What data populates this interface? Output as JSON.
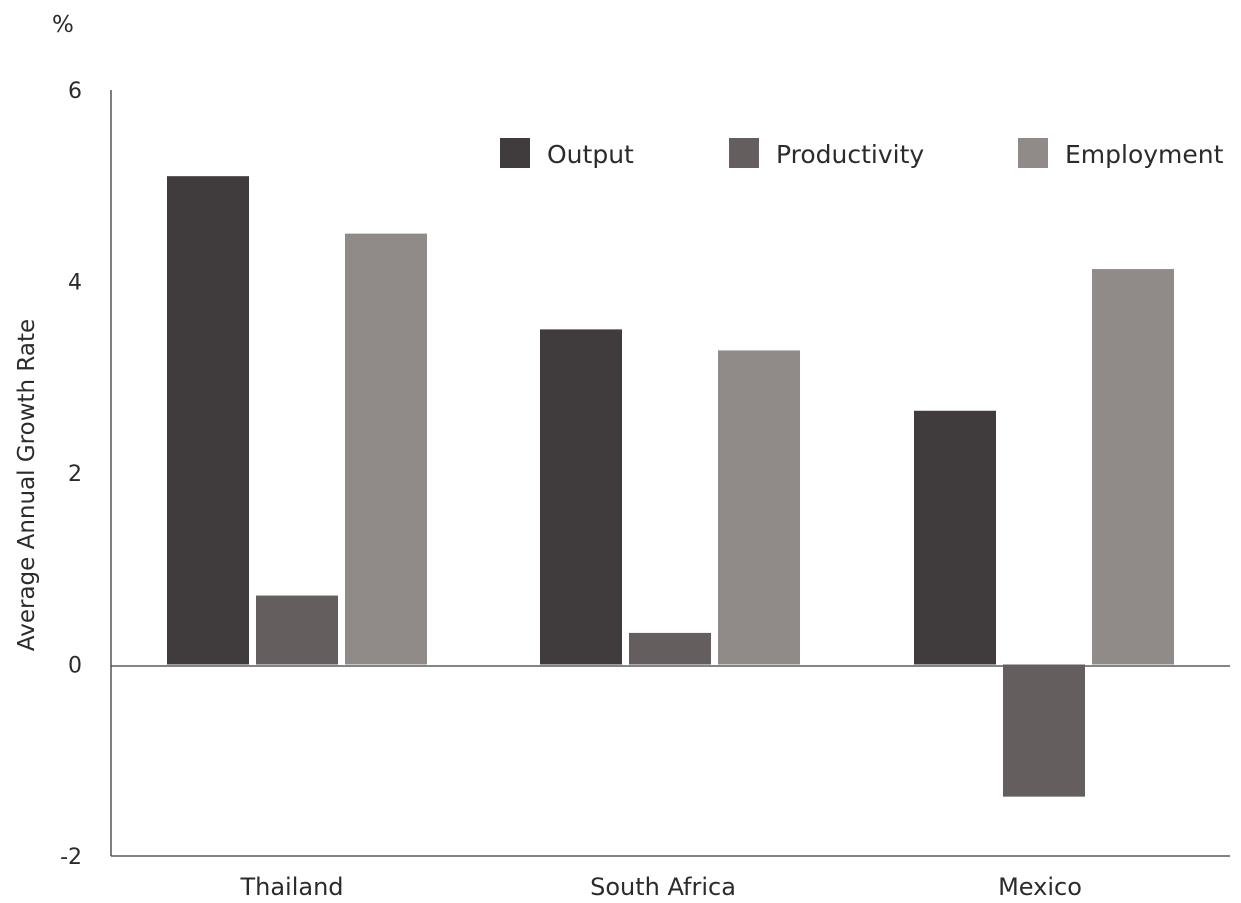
{
  "chart_data": {
    "type": "bar",
    "unit_label": "%",
    "ylabel": "Average Annual Growth Rate",
    "categories": [
      "Thailand",
      "South Africa",
      "Mexico"
    ],
    "ylim": [
      -2,
      6
    ],
    "yticks": [
      6,
      4,
      2,
      0,
      -2
    ],
    "grid": false,
    "legend_position": "top-right",
    "series": [
      {
        "name": "Output",
        "color": "#403c3d",
        "values": [
          5.1,
          3.5,
          2.65
        ]
      },
      {
        "name": "Productivity",
        "color": "#645e5f",
        "values": [
          0.72,
          0.33,
          -1.38
        ]
      },
      {
        "name": "Employment",
        "color": "#908b89",
        "values": [
          4.5,
          3.28,
          4.13
        ]
      }
    ]
  }
}
